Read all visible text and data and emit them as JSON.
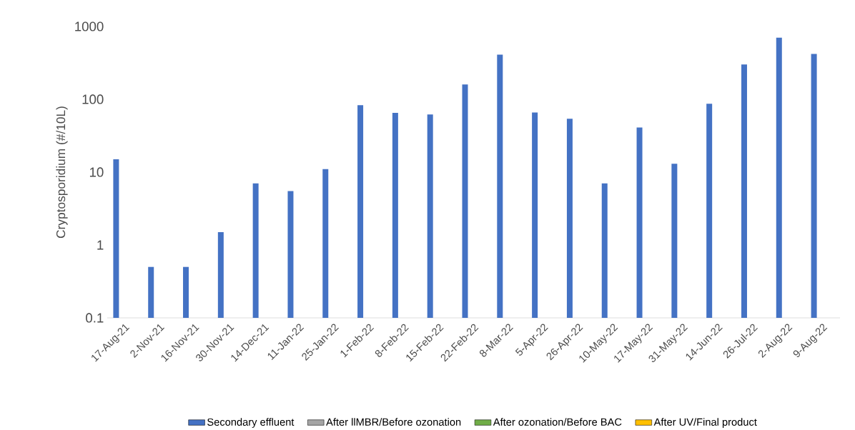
{
  "chart_data": {
    "type": "bar",
    "ylabel": "Cryptosporidium (#/10L)",
    "categories": [
      "17-Aug-21",
      "2-Nov-21",
      "16-Nov-21",
      "30-Nov-21",
      "14-Dec-21",
      "11-Jan-22",
      "25-Jan-22",
      "1-Feb-22",
      "8-Feb-22",
      "15-Feb-22",
      "22-Feb-22",
      "8-Mar-22",
      "5-Apr-22",
      "26-Apr-22",
      "10-May-22",
      "17-May-22",
      "31-May-22",
      "14-Jun-22",
      "26-Jul-22",
      "2-Aug-22",
      "9-Aug-22"
    ],
    "series": [
      {
        "name": "Secondary effluent",
        "color": "#4472c4",
        "values": [
          15,
          0.5,
          0.5,
          1.5,
          7,
          5.5,
          11,
          83,
          65,
          62,
          160,
          410,
          66,
          54,
          7,
          41,
          13,
          87,
          300,
          700,
          420
        ]
      },
      {
        "name": "After llMBR/Before ozonation",
        "color": "#a5a5a5",
        "values": [
          null,
          null,
          null,
          null,
          null,
          null,
          null,
          null,
          null,
          null,
          null,
          null,
          null,
          null,
          null,
          null,
          null,
          null,
          null,
          null,
          null
        ]
      },
      {
        "name": "After ozonation/Before BAC",
        "color": "#70ad47",
        "values": [
          null,
          null,
          null,
          null,
          null,
          null,
          null,
          null,
          null,
          null,
          null,
          null,
          null,
          null,
          null,
          null,
          null,
          null,
          null,
          null,
          null
        ]
      },
      {
        "name": "After UV/Final product",
        "color": "#ffc000",
        "values": [
          null,
          null,
          null,
          null,
          null,
          null,
          null,
          null,
          null,
          null,
          null,
          null,
          null,
          null,
          null,
          null,
          null,
          null,
          null,
          null,
          null
        ]
      }
    ],
    "log": true,
    "ylim": [
      0.1,
      1000
    ],
    "yticks": [
      0.1,
      1,
      10,
      100,
      1000
    ],
    "legend": "bottom",
    "grid": false
  }
}
